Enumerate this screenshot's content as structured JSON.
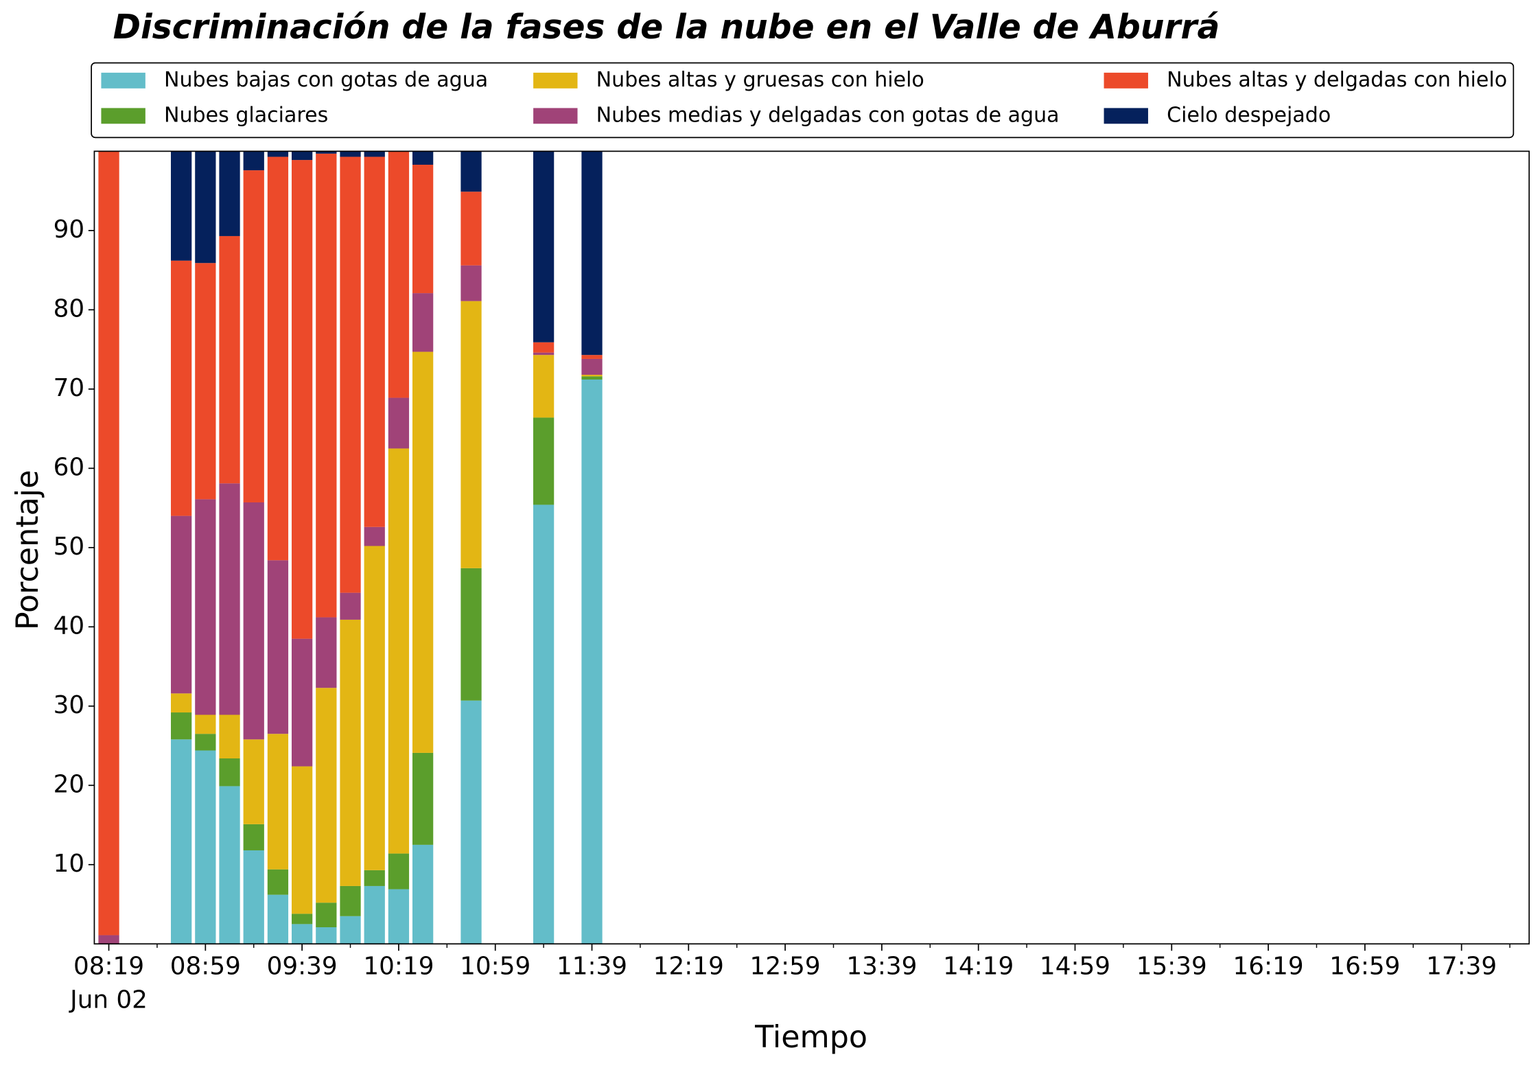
{
  "chart_data": {
    "type": "stacked_bar",
    "title": "Discriminación de la fases de la nube en el Valle de Aburrá",
    "xlabel": "Tiempo",
    "ylabel": "Porcentaje",
    "x": [
      "08:19",
      "08:49",
      "08:59",
      "09:09",
      "09:19",
      "09:29",
      "09:39",
      "09:49",
      "09:59",
      "10:09",
      "10:19",
      "10:29",
      "10:49",
      "11:19",
      "11:39"
    ],
    "series": [
      {
        "name": "Nubes bajas con gotas de agua",
        "color": "#63bdc9",
        "values": [
          0,
          25.8,
          24.4,
          19.9,
          11.8,
          6.2,
          2.5,
          2.1,
          3.5,
          7.3,
          6.9,
          12.5,
          30.7,
          55.4,
          71.2
        ]
      },
      {
        "name": "Nubes glaciares",
        "color": "#5b9e2c",
        "values": [
          0,
          3.4,
          2.1,
          3.5,
          3.3,
          3.2,
          1.3,
          3.1,
          3.8,
          2.0,
          4.5,
          11.6,
          16.7,
          11.0,
          0.4
        ]
      },
      {
        "name": "Nubes altas y gruesas con hielo",
        "color": "#e3b614",
        "values": [
          0,
          2.4,
          2.4,
          5.5,
          10.7,
          17.1,
          18.6,
          27.1,
          33.6,
          40.9,
          51.1,
          50.6,
          33.7,
          7.9,
          0.2
        ]
      },
      {
        "name": "Nubes medias y delgadas con gotas de agua",
        "color": "#a04378",
        "values": [
          1.1,
          22.4,
          27.2,
          29.2,
          29.9,
          21.9,
          16.1,
          8.9,
          3.4,
          2.4,
          6.4,
          7.4,
          4.5,
          0.3,
          2.0
        ]
      },
      {
        "name": "Nubes altas y delgadas con hielo",
        "color": "#ec4a2a",
        "values": [
          98.9,
          32.2,
          29.8,
          31.2,
          41.9,
          50.9,
          60.4,
          58.5,
          55.0,
          46.7,
          31.1,
          16.2,
          9.3,
          1.3,
          0.5
        ]
      },
      {
        "name": "Cielo despejado",
        "color": "#05215c",
        "values": [
          0,
          13.8,
          14.1,
          10.7,
          2.4,
          0.7,
          1.1,
          0.3,
          0.7,
          0.7,
          0,
          1.7,
          5.1,
          24.1,
          25.7
        ]
      }
    ],
    "bar_interval_minutes": 10,
    "xlim": [
      "08:13",
      "18:07"
    ],
    "xticks": [
      "08:19",
      "08:59",
      "09:39",
      "10:19",
      "10:59",
      "11:39",
      "12:19",
      "12:59",
      "13:39",
      "14:19",
      "14:59",
      "15:39",
      "16:19",
      "16:59",
      "17:39"
    ],
    "x_date_label": "Jun 02",
    "xminorticks": [
      "08:39",
      "09:19",
      "09:59",
      "10:39",
      "11:19",
      "11:59",
      "12:39",
      "13:19",
      "13:59",
      "14:39",
      "15:19",
      "15:59",
      "16:39",
      "17:19",
      "17:59"
    ],
    "ylim": [
      0,
      100
    ],
    "yticks": [
      10,
      20,
      30,
      40,
      50,
      60,
      70,
      80,
      90
    ],
    "legend": "top",
    "grid": false
  }
}
